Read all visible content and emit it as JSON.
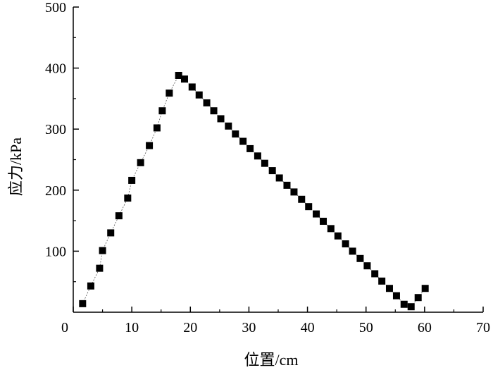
{
  "chart_data": {
    "type": "scatter",
    "title": "",
    "xlabel": "位置/cm",
    "ylabel": "应力/kPa",
    "xlim": [
      0,
      70
    ],
    "ylim": [
      0,
      500
    ],
    "xticks": [
      0,
      10,
      20,
      30,
      40,
      50,
      60,
      70
    ],
    "yticks": [
      100,
      200,
      300,
      400,
      500
    ],
    "grid": false,
    "marker": "square",
    "marker_color": "#000000",
    "trend_line": "dashed",
    "series": [
      {
        "x": [
          1.6,
          3.0,
          4.5,
          5.0,
          6.4,
          7.8,
          9.3,
          10.0,
          11.5,
          13.0,
          14.3,
          15.2,
          16.4,
          18.0,
          19.0,
          20.3,
          21.5,
          22.8,
          24.0,
          25.2,
          26.5,
          27.7,
          29.0,
          30.2,
          31.5,
          32.7,
          34.0,
          35.2,
          36.5,
          37.7,
          39.0,
          40.2,
          41.5,
          42.7,
          44.0,
          45.2,
          46.5,
          47.7,
          49.0,
          50.2,
          51.5,
          52.7,
          54.0,
          55.2,
          56.5,
          57.7,
          58.9,
          60.1
        ],
        "y": [
          14,
          43,
          72,
          101,
          130,
          158,
          187,
          216,
          245,
          273,
          302,
          330,
          359,
          388,
          382,
          369,
          356,
          343,
          330,
          317,
          305,
          292,
          280,
          268,
          256,
          244,
          232,
          220,
          208,
          197,
          185,
          173,
          161,
          149,
          137,
          125,
          112,
          100,
          88,
          76,
          63,
          51,
          39,
          27,
          13,
          9,
          24,
          39
        ]
      }
    ]
  }
}
